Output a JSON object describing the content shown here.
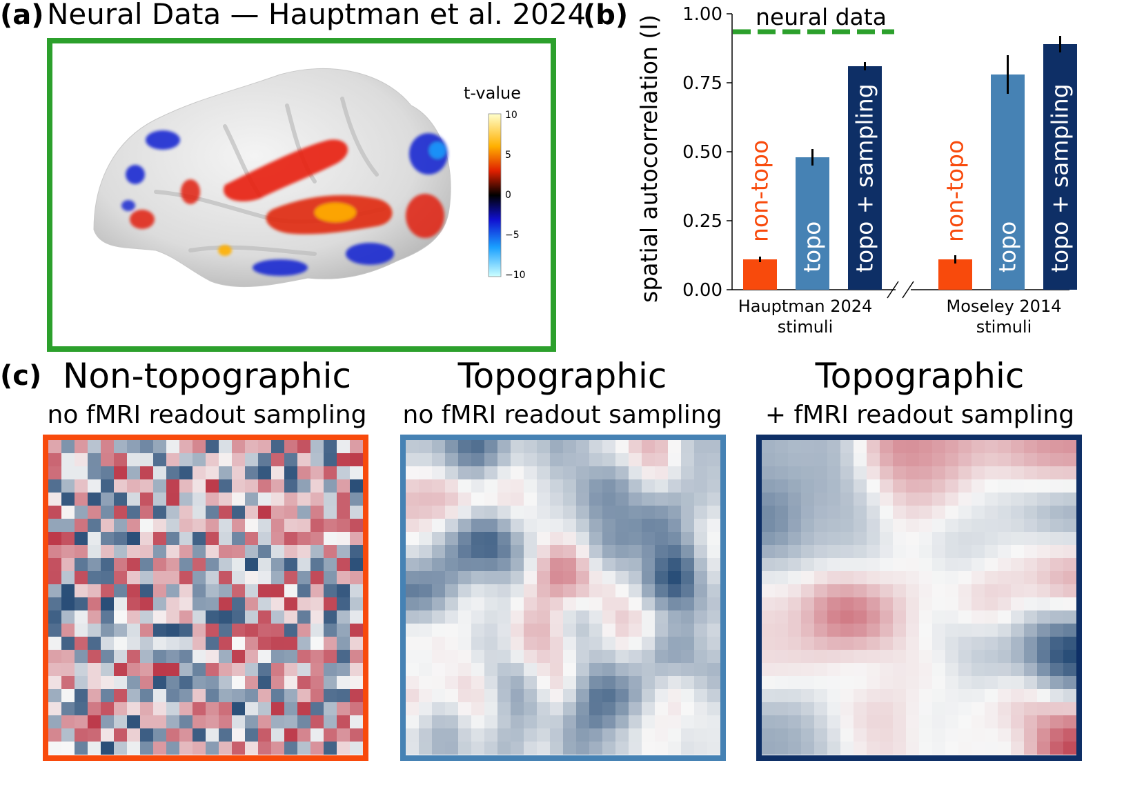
{
  "panel_a": {
    "letter": "(a)",
    "title": "Neural Data — Hauptman et al. 2024",
    "frame_color": "#2ca02c",
    "colorbar": {
      "label": "t-value",
      "ticks": [
        "10",
        "5",
        "0",
        "−5",
        "−10"
      ]
    }
  },
  "panel_b": {
    "letter": "(b)"
  },
  "panel_c": {
    "letter": "(c)",
    "maps": [
      {
        "title": "Non-topographic",
        "subtitle": "no fMRI readout sampling",
        "frame_color": "#f84a0c",
        "smoothness": 0
      },
      {
        "title": "Topographic",
        "subtitle": "no fMRI readout sampling",
        "frame_color": "#4682b4",
        "smoothness": 1
      },
      {
        "title": "Topographic",
        "subtitle": "+ fMRI readout sampling",
        "frame_color": "#0e2f66",
        "smoothness": 2
      }
    ]
  },
  "chart_data": {
    "type": "bar",
    "ylabel": "spatial autocorrelation (I)",
    "ylim": [
      0,
      1
    ],
    "yticks": [
      "0.00",
      "0.25",
      "0.50",
      "0.75",
      "1.00"
    ],
    "groups": [
      {
        "label_line1": "Hauptman 2024",
        "label_line2": "stimuli"
      },
      {
        "label_line1": "Moseley 2014",
        "label_line2": "stimuli"
      }
    ],
    "series": [
      {
        "name": "non-topo",
        "color": "#f84a0c",
        "label_color": "#f84a0c",
        "values": [
          0.11,
          0.11
        ],
        "errors": [
          0.01,
          0.015
        ]
      },
      {
        "name": "topo",
        "color": "#4682b4",
        "label_color": "#ffffff",
        "values": [
          0.48,
          0.78
        ],
        "errors": [
          0.03,
          0.07
        ]
      },
      {
        "name": "topo + sampling",
        "color": "#0e2f66",
        "label_color": "#ffffff",
        "values": [
          0.81,
          0.89
        ],
        "errors": [
          0.015,
          0.03
        ]
      }
    ],
    "reference_line": {
      "label": "neural data",
      "value": 0.935,
      "color": "#2ca02c",
      "style": "dashed"
    }
  }
}
